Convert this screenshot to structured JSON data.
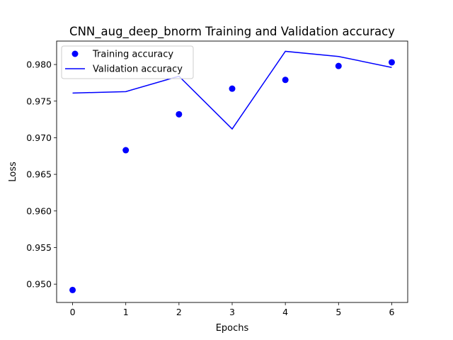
{
  "chart_data": {
    "type": "line",
    "title": "CNN_aug_deep_bnorm Training and Validation accuracy",
    "xlabel": "Epochs",
    "ylabel": "Loss",
    "x": [
      0,
      1,
      2,
      3,
      4,
      5,
      6
    ],
    "xlim": [
      -0.3,
      6.3
    ],
    "ylim": [
      0.9475,
      0.9832
    ],
    "xticks": [
      0,
      1,
      2,
      3,
      4,
      5,
      6
    ],
    "yticks": [
      0.95,
      0.955,
      0.96,
      0.965,
      0.97,
      0.975,
      0.98
    ],
    "ytick_labels": [
      "0.950",
      "0.955",
      "0.960",
      "0.965",
      "0.970",
      "0.975",
      "0.980"
    ],
    "grid": false,
    "legend_position": "top-left",
    "series": [
      {
        "name": "Training accuracy",
        "style": "markers",
        "color": "#0000ff",
        "values": [
          0.9492,
          0.9683,
          0.9732,
          0.9767,
          0.9779,
          0.9798,
          0.9803
        ]
      },
      {
        "name": "Validation accuracy",
        "style": "line",
        "color": "#0000ff",
        "values": [
          0.9761,
          0.9763,
          0.9784,
          0.9712,
          0.9818,
          0.9811,
          0.9796
        ]
      }
    ]
  }
}
